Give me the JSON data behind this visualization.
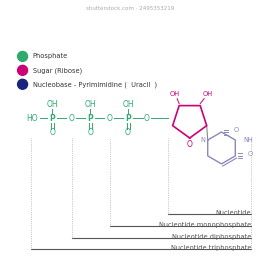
{
  "background_color": "#ffffff",
  "phosphate_color": "#2eaa6e",
  "ribose_color": "#cc0077",
  "base_color": "#8888bb",
  "bracket_labels": [
    "Nucleotide triphosphate",
    "Nucleotide diphosphate",
    "Nucleotide monophosphate",
    "Nucleotide"
  ],
  "legend": [
    {
      "label": "Nucleobase - Pyrimimidine (  Uracil  )",
      "color": "#1a237e"
    },
    {
      "label": "Sugar (Ribose)",
      "color": "#cc0077"
    },
    {
      "label": "Phosphate",
      "color": "#2eaa6e"
    }
  ],
  "watermark": "shutterstock.com · 2495353219"
}
